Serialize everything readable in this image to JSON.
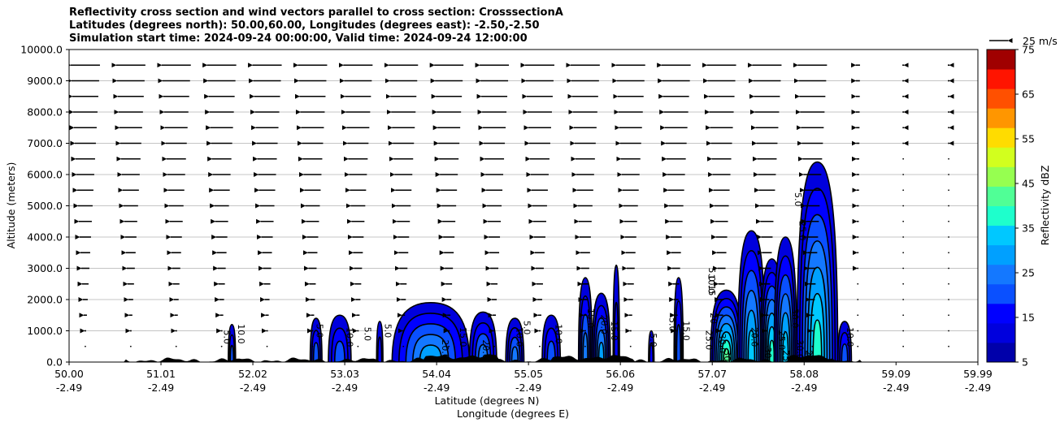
{
  "title": {
    "line1": "Reflectivity cross section and wind vectors parallel to cross section: CrosssectionA",
    "line2": "Latitudes (degrees north): 50.00,60.00, Longitudes (degrees east): -2.50,-2.50",
    "line3": "Simulation start time: 2024-09-24 00:00:00, Valid time: 2024-09-24 12:00:00"
  },
  "chart_data": {
    "type": "contourf",
    "ylabel": "Altitude (meters)",
    "xlabel_lat": "Latitude (degrees N)",
    "xlabel_lon": "Longitude (degrees E)",
    "ylim": [
      0,
      10000
    ],
    "xlim": [
      50.0,
      59.99
    ],
    "y_ticks": [
      "0.0",
      "1000.0",
      "2000.0",
      "3000.0",
      "4000.0",
      "5000.0",
      "6000.0",
      "7000.0",
      "8000.0",
      "9000.0",
      "10000.0"
    ],
    "y_tick_values": [
      0,
      1000,
      2000,
      3000,
      4000,
      5000,
      6000,
      7000,
      8000,
      9000,
      10000
    ],
    "x_ticks_lat": [
      "50.00",
      "51.01",
      "52.02",
      "53.03",
      "54.04",
      "55.05",
      "56.06",
      "57.07",
      "58.08",
      "59.09",
      "59.99"
    ],
    "x_tick_values": [
      50.0,
      51.01,
      52.02,
      53.03,
      54.04,
      55.05,
      56.06,
      57.07,
      58.08,
      59.09,
      59.99
    ],
    "x_ticks_lon": [
      "-2.49",
      "-2.49",
      "-2.49",
      "-2.49",
      "-2.49",
      "-2.49",
      "-2.49",
      "-2.49",
      "-2.49",
      "-2.49",
      "-2.49"
    ],
    "grid": "horizontal",
    "quiver_key": "25 m/s",
    "colorbar": {
      "label": "Reflectivity dBZ",
      "levels": [
        5,
        10,
        15,
        20,
        25,
        30,
        35,
        40,
        45,
        50,
        55,
        60,
        65,
        70,
        75
      ],
      "tick_labels": [
        "5",
        "15",
        "25",
        "35",
        "45",
        "55",
        "65",
        "75"
      ],
      "colors": [
        "#0000aa",
        "#0000dd",
        "#0000ff",
        "#0a50ff",
        "#1478ff",
        "#00a0ff",
        "#00c8ff",
        "#1effcc",
        "#50ff96",
        "#96ff50",
        "#d2ff1e",
        "#ffdc00",
        "#ff9600",
        "#ff5000",
        "#ff1400",
        "#a00000"
      ]
    },
    "cells": [
      {
        "x0": 51.75,
        "x1": 51.83,
        "top": 1200,
        "max": 15
      },
      {
        "x0": 52.65,
        "x1": 52.78,
        "top": 1400,
        "max": 15
      },
      {
        "x0": 52.85,
        "x1": 53.1,
        "top": 1500,
        "max": 15
      },
      {
        "x0": 53.38,
        "x1": 53.45,
        "top": 1300,
        "max": 10
      },
      {
        "x0": 53.55,
        "x1": 54.4,
        "top": 1900,
        "max": 25
      },
      {
        "x0": 54.4,
        "x1": 54.7,
        "top": 1600,
        "max": 20
      },
      {
        "x0": 54.8,
        "x1": 55.0,
        "top": 1400,
        "max": 20
      },
      {
        "x0": 55.2,
        "x1": 55.4,
        "top": 1500,
        "max": 15
      },
      {
        "x0": 55.6,
        "x1": 55.75,
        "top": 2700,
        "max": 20
      },
      {
        "x0": 55.75,
        "x1": 55.95,
        "top": 2200,
        "max": 25
      },
      {
        "x0": 55.98,
        "x1": 56.05,
        "top": 3100,
        "max": 10
      },
      {
        "x0": 56.37,
        "x1": 56.43,
        "top": 1000,
        "max": 10
      },
      {
        "x0": 56.65,
        "x1": 56.75,
        "top": 2700,
        "max": 15
      },
      {
        "x0": 57.05,
        "x1": 57.4,
        "top": 2300,
        "max": 40
      },
      {
        "x0": 57.35,
        "x1": 57.65,
        "top": 4200,
        "max": 30
      },
      {
        "x0": 57.6,
        "x1": 57.85,
        "top": 3300,
        "max": 35
      },
      {
        "x0": 57.75,
        "x1": 58.0,
        "top": 4000,
        "max": 30
      },
      {
        "x0": 58.0,
        "x1": 58.45,
        "top": 6400,
        "max": 35
      },
      {
        "x0": 58.45,
        "x1": 58.6,
        "top": 1300,
        "max": 15
      }
    ],
    "contour_labels": [
      {
        "x": 51.7,
        "y": 800,
        "text": "5.0"
      },
      {
        "x": 51.86,
        "y": 900,
        "text": "10.0"
      },
      {
        "x": 52.72,
        "y": 1000,
        "text": "5.0"
      },
      {
        "x": 53.05,
        "y": 800,
        "text": "10.0"
      },
      {
        "x": 53.25,
        "y": 900,
        "text": "5.0"
      },
      {
        "x": 53.47,
        "y": 1000,
        "text": "5.0"
      },
      {
        "x": 54.1,
        "y": 400,
        "text": "20.0"
      },
      {
        "x": 54.3,
        "y": 800,
        "text": "15.0"
      },
      {
        "x": 54.55,
        "y": 400,
        "text": "20.0"
      },
      {
        "x": 54.92,
        "y": 800,
        "text": "10.0"
      },
      {
        "x": 55.0,
        "y": 1100,
        "text": "5.0"
      },
      {
        "x": 55.35,
        "y": 900,
        "text": "10.0"
      },
      {
        "x": 55.7,
        "y": 1400,
        "text": "15.0"
      },
      {
        "x": 55.85,
        "y": 1200,
        "text": "20.0"
      },
      {
        "x": 55.96,
        "y": 1000,
        "text": "15.0"
      },
      {
        "x": 56.39,
        "y": 700,
        "text": "5.0"
      },
      {
        "x": 56.6,
        "y": 1200,
        "text": "5.0"
      },
      {
        "x": 56.75,
        "y": 1000,
        "text": "15.0"
      },
      {
        "x": 57.03,
        "y": 2800,
        "text": "5.0"
      },
      {
        "x": 57.03,
        "y": 2500,
        "text": "10.0"
      },
      {
        "x": 57.03,
        "y": 2300,
        "text": "15"
      },
      {
        "x": 57.05,
        "y": 1400,
        "text": "20"
      },
      {
        "x": 57.0,
        "y": 700,
        "text": "25.0"
      },
      {
        "x": 57.15,
        "y": 600,
        "text": "30.0"
      },
      {
        "x": 57.2,
        "y": 200,
        "text": "30"
      },
      {
        "x": 57.5,
        "y": 800,
        "text": "20.0"
      },
      {
        "x": 57.65,
        "y": 300,
        "text": "30"
      },
      {
        "x": 57.8,
        "y": 700,
        "text": "25.0"
      },
      {
        "x": 57.95,
        "y": 1400,
        "text": "30.0"
      },
      {
        "x": 57.85,
        "y": 200,
        "text": "25"
      },
      {
        "x": 58.0,
        "y": 400,
        "text": "30.0"
      },
      {
        "x": 58.03,
        "y": 4200,
        "text": "25.0"
      },
      {
        "x": 57.98,
        "y": 5200,
        "text": "5.0"
      },
      {
        "x": 58.1,
        "y": 200,
        "text": "20"
      },
      {
        "x": 58.55,
        "y": 800,
        "text": "10.0"
      }
    ]
  }
}
